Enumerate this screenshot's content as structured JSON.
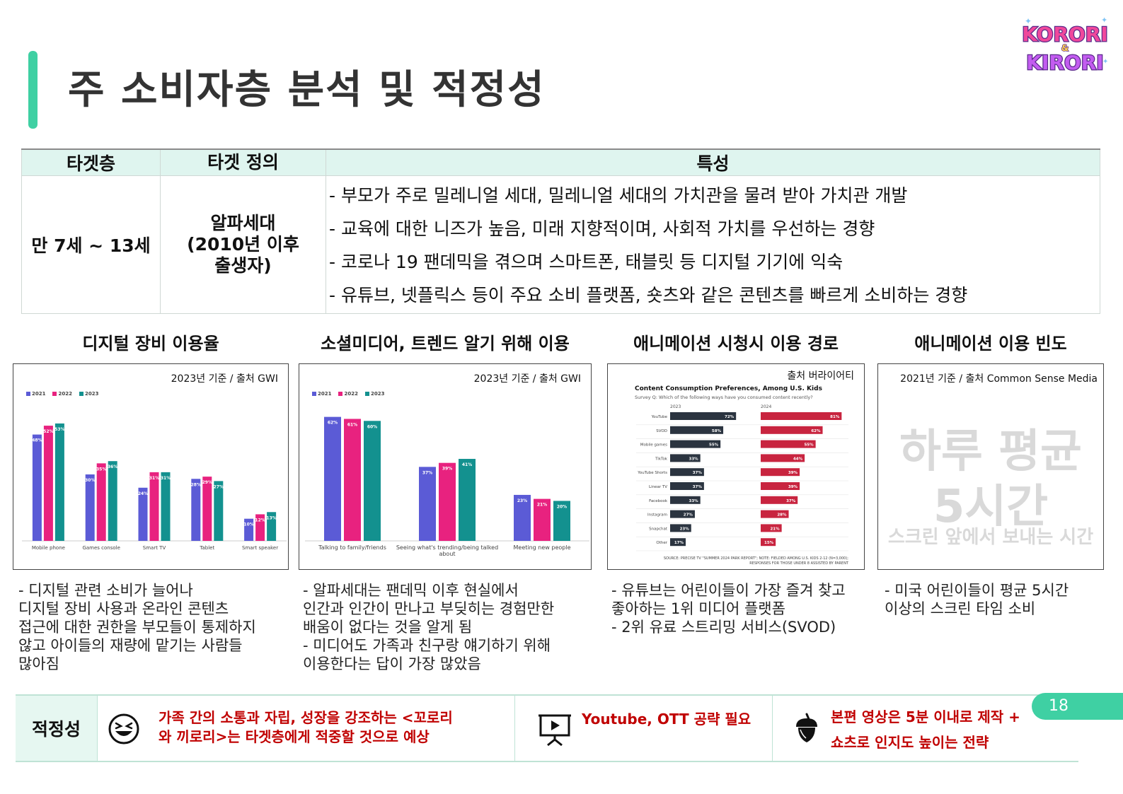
{
  "page": {
    "title": "주 소비자층 분석 및 적정성",
    "page_number": "18"
  },
  "logo": {
    "line1": "KORORI",
    "amp": "&",
    "line2": "KIRORI"
  },
  "target_table": {
    "headers": [
      "타겟층",
      "타겟 정의",
      "특성"
    ],
    "age": "만 7세 ~ 13세",
    "definition": [
      "알파세대",
      "(2010년 이후",
      "출생자)"
    ],
    "traits": [
      "- 부모가 주로 밀레니얼 세대, 밀레니얼 세대의 가치관을 물려 받아 가치관 개발",
      "- 교육에 대한 니즈가 높음, 미래 지향적이며, 사회적 가치를 우선하는 경향",
      "- 코로나 19 팬데믹을 겪으며 스마트폰, 태블릿 등 디지털 기기에 익숙",
      "- 유튜브, 넷플릭스 등이 주요 소비 플랫폼, 숏츠와 같은 콘텐츠를 빠르게 소비하는 경향"
    ]
  },
  "columns": {
    "c1": {
      "heading": "디지털 장비 이용율",
      "source": "2023년 기준 / 출처 GWI",
      "desc": [
        "- 디지털 관련 소비가 늘어나",
        "디지털 장비 사용과 온라인 콘텐츠",
        "접근에 대한 권한을 부모들이 통제하지",
        "않고 아이들의 재량에 맡기는 사람들",
        "많아짐"
      ]
    },
    "c2": {
      "heading": "소셜미디어, 트렌드 알기 위해 이용",
      "source": "2023년 기준 / 출처 GWI",
      "desc": [
        "- 알파세대는 팬데믹 이후 현실에서",
        "인간과 인간이 만나고 부딪히는 경험만한",
        "배움이 없다는 것을 알게 됨",
        "- 미디어도 가족과 친구랑 얘기하기 위해",
        "이용한다는 답이 가장 많았음"
      ]
    },
    "c3": {
      "heading": "애니메이션 시청시  이용 경로",
      "source": "출처 버라이어티",
      "desc": [
        "- 유튜브는 어린이들이 가장 즐겨 찾고",
        "좋아하는 1위 미디어 플랫폼",
        "- 2위 유료 스트리밍 서비스(SVOD)"
      ]
    },
    "c4": {
      "heading": "애니메이션 이용 빈도",
      "source": "2021년 기준 / 출처 Common Sense Media",
      "big1": "하루 평균",
      "big2": "5시간",
      "big3": "스크린 앞에서 보내는 시간",
      "desc": [
        "- 미국 어린이들이 평균 5시간",
        "이상의 스크린 타임 소비"
      ]
    }
  },
  "chart_data": [
    {
      "type": "bar",
      "title": "",
      "categories": [
        "Mobile phone",
        "Games console",
        "Smart TV",
        "Tablet",
        "Smart speaker"
      ],
      "series": [
        {
          "name": "2021",
          "values": [
            48,
            30,
            24,
            28,
            10
          ]
        },
        {
          "name": "2022",
          "values": [
            52,
            35,
            31,
            29,
            12
          ]
        },
        {
          "name": "2023",
          "values": [
            53,
            36,
            31,
            27,
            13
          ]
        }
      ],
      "ylim": [
        0,
        60
      ],
      "colors": [
        "#5b5bd6",
        "#e8227f",
        "#13918f"
      ]
    },
    {
      "type": "bar",
      "title": "",
      "categories": [
        "Talking to family/friends",
        "Seeing what's trending/being talked about",
        "Meeting new people"
      ],
      "series": [
        {
          "name": "2021",
          "values": [
            62,
            37,
            23
          ]
        },
        {
          "name": "2022",
          "values": [
            61,
            39,
            21
          ]
        },
        {
          "name": "2023",
          "values": [
            60,
            41,
            20
          ]
        }
      ],
      "ylim": [
        0,
        70
      ],
      "colors": [
        "#5b5bd6",
        "#e8227f",
        "#13918f"
      ]
    },
    {
      "type": "bar",
      "orientation": "horizontal",
      "title": "Content Consumption Preferences, Among U.S. Kids",
      "subtitle": "Survey Q: Which of the following ways have you consumed content recently?",
      "categories": [
        "YouTube",
        "SVOD",
        "Mobile games",
        "TikTok",
        "YouTube Shorts",
        "Linear TV",
        "Facebook",
        "Instagram",
        "Snapchat",
        "Other"
      ],
      "series": [
        {
          "name": "2023",
          "values": [
            72,
            58,
            55,
            33,
            37,
            37,
            33,
            27,
            23,
            17
          ]
        },
        {
          "name": "2024",
          "values": [
            81,
            62,
            55,
            44,
            39,
            39,
            37,
            28,
            21,
            15
          ]
        }
      ],
      "xlim": [
        0,
        85
      ],
      "colors": [
        "#2b3440",
        "#c8243f"
      ],
      "footnote": "SOURCE: PRECISE TV \"SUMMER 2024 PARK REPORT\"; NOTE: FIELDED AMONG U.S. KIDS 2-12 (N=3,000);",
      "footnote2": "RESPONSES FOR THOSE UNDER 8 ASSISTED BY PARENT"
    }
  ],
  "fit": {
    "label": "적정성",
    "items": [
      {
        "icon": "laughing-face-icon",
        "lines": [
          "가족 간의 소통과 자립, 성장을 강조하는 <꼬로리",
          "와 끼로리>는 타겟층에게 적중할 것으로 예상"
        ]
      },
      {
        "icon": "presentation-screen-icon",
        "lines": [
          "Youtube, OTT 공략 필요"
        ]
      },
      {
        "icon": "acorn-icon",
        "lines": [
          "본편 영상은 5분 이내로 제작 +",
          "쇼츠로 인지도 높이는 전략"
        ]
      }
    ]
  }
}
